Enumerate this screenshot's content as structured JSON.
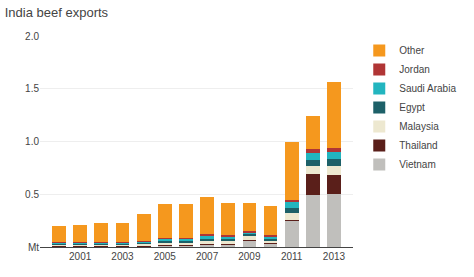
{
  "chart_data": {
    "type": "bar",
    "title": "India beef exports",
    "stacked": true,
    "x": [
      2000,
      2001,
      2002,
      2003,
      2004,
      2005,
      2006,
      2007,
      2008,
      2009,
      2010,
      2011,
      2012,
      2013
    ],
    "xlim": [
      1999.1,
      2013.9
    ],
    "xticks": [
      2001,
      2003,
      2005,
      2007,
      2009,
      2011,
      2013
    ],
    "ylim": [
      0,
      2.0
    ],
    "yticks": [
      {
        "value": 0,
        "label": "Mt"
      },
      0.5,
      {
        "value": 1.0,
        "label": "1.0"
      },
      1.5,
      {
        "value": 2.0,
        "label": "2.0"
      }
    ],
    "grid": true,
    "legend": "right",
    "series": [
      {
        "name": "Vietnam",
        "color": "#c0bfbc",
        "values": [
          0.0,
          0.0,
          0.0,
          0.0,
          0.0,
          0.01,
          0.01,
          0.02,
          0.02,
          0.06,
          0.03,
          0.25,
          0.49,
          0.5
        ]
      },
      {
        "name": "Thailand",
        "color": "#5a1f1a",
        "values": [
          0.01,
          0.01,
          0.01,
          0.01,
          0.01,
          0.01,
          0.01,
          0.01,
          0.01,
          0.01,
          0.01,
          0.01,
          0.2,
          0.18
        ]
      },
      {
        "name": "Malaysia",
        "color": "#ede8d0",
        "values": [
          0.01,
          0.01,
          0.01,
          0.01,
          0.02,
          0.02,
          0.02,
          0.03,
          0.03,
          0.03,
          0.02,
          0.06,
          0.08,
          0.09
        ]
      },
      {
        "name": "Egypt",
        "color": "#1d6068",
        "values": [
          0.01,
          0.01,
          0.01,
          0.01,
          0.01,
          0.02,
          0.02,
          0.02,
          0.02,
          0.02,
          0.02,
          0.05,
          0.05,
          0.06
        ]
      },
      {
        "name": "Saudi Arabia",
        "color": "#22b5bf",
        "values": [
          0.01,
          0.01,
          0.01,
          0.01,
          0.01,
          0.02,
          0.02,
          0.03,
          0.02,
          0.02,
          0.02,
          0.06,
          0.07,
          0.07
        ]
      },
      {
        "name": "Jordan",
        "color": "#b03535",
        "values": [
          0.01,
          0.01,
          0.01,
          0.01,
          0.01,
          0.01,
          0.01,
          0.01,
          0.01,
          0.01,
          0.01,
          0.02,
          0.04,
          0.04
        ]
      },
      {
        "name": "Other",
        "color": "#f5981e",
        "values": [
          0.15,
          0.16,
          0.18,
          0.18,
          0.25,
          0.32,
          0.32,
          0.35,
          0.31,
          0.27,
          0.28,
          0.55,
          0.31,
          0.62
        ]
      }
    ]
  }
}
